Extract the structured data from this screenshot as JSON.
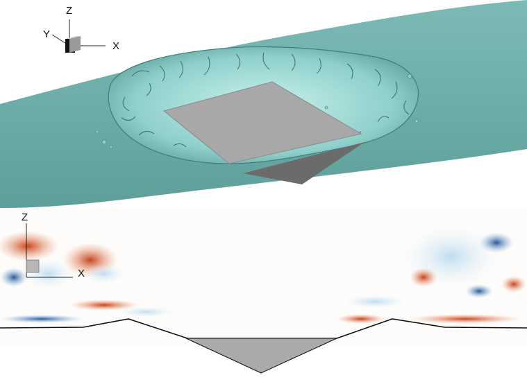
{
  "top_panel": {
    "axes": {
      "z_label": "Z",
      "y_label": "Y",
      "x_label": "X"
    },
    "colors": {
      "surface": "#6fada8",
      "surface_light": "#9fdcd8",
      "surface_dark": "#3f7e7a",
      "plate": "#a8a8a8",
      "plate_shadow": "#7f7f7f"
    }
  },
  "bottom_panel": {
    "axes": {
      "z_label": "Z",
      "x_label": "X"
    },
    "colors": {
      "positive": "#d94a1a",
      "negative": "#1f5fa8",
      "plate": "#aaaaaa",
      "surface_line": "#111111"
    }
  }
}
